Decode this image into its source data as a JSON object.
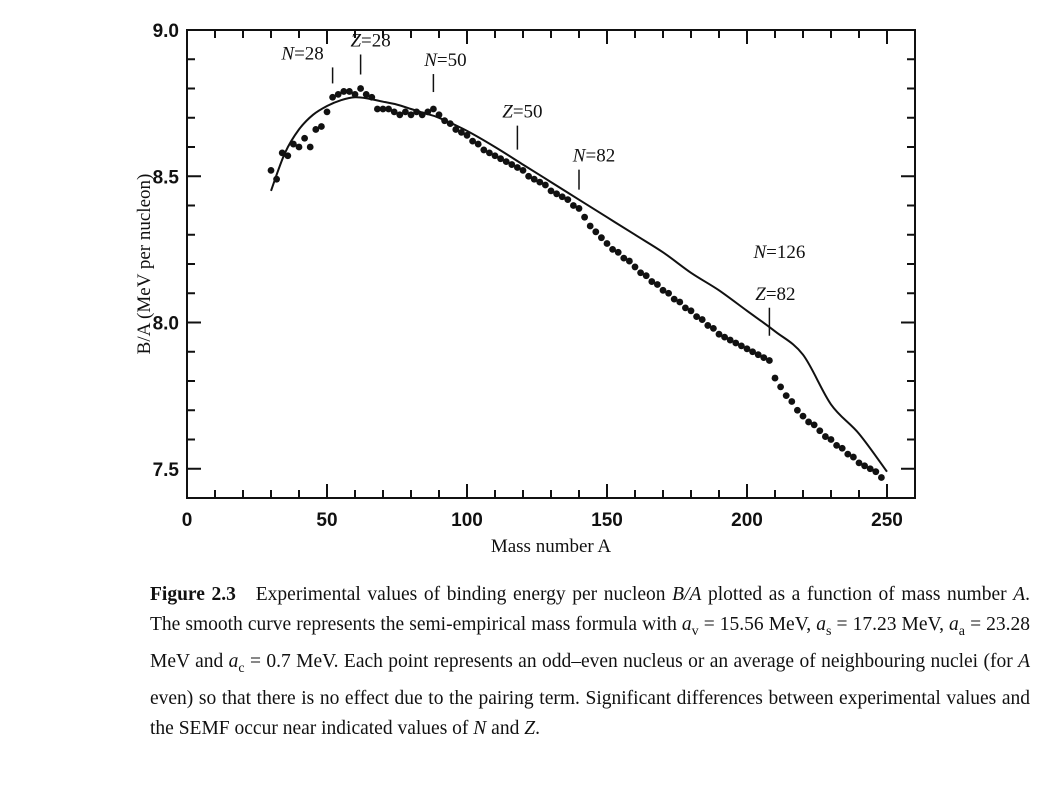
{
  "chart_data": {
    "type": "scatter",
    "xlabel": "Mass number A",
    "ylabel": "B/A (MeV per nucleon)",
    "xlim": [
      0,
      260
    ],
    "ylim": [
      7.4,
      9.0
    ],
    "x_ticks": [
      "0",
      "50",
      "100",
      "150",
      "200",
      "250"
    ],
    "x_tick_values": [
      0,
      50,
      100,
      150,
      200,
      250
    ],
    "y_ticks": [
      "7.5",
      "8.0",
      "8.5",
      "9.0"
    ],
    "y_tick_values": [
      7.5,
      8.0,
      8.5,
      9.0
    ],
    "series": [
      {
        "name": "Experimental values",
        "kind": "points",
        "x": [
          30,
          32,
          34,
          36,
          38,
          40,
          42,
          44,
          46,
          48,
          50,
          52,
          54,
          56,
          58,
          60,
          62,
          64,
          66,
          68,
          70,
          72,
          74,
          76,
          78,
          80,
          82,
          84,
          86,
          88,
          90,
          92,
          94,
          96,
          98,
          100,
          102,
          104,
          106,
          108,
          110,
          112,
          114,
          116,
          118,
          120,
          122,
          124,
          126,
          128,
          130,
          132,
          134,
          136,
          138,
          140,
          142,
          144,
          146,
          148,
          150,
          152,
          154,
          156,
          158,
          160,
          162,
          164,
          166,
          168,
          170,
          172,
          174,
          176,
          178,
          180,
          182,
          184,
          186,
          188,
          190,
          192,
          194,
          196,
          198,
          200,
          202,
          204,
          206,
          208,
          210,
          212,
          214,
          216,
          218,
          220,
          222,
          224,
          226,
          228,
          230,
          232,
          234,
          236,
          238,
          240,
          242,
          244,
          246,
          248
        ],
        "y": [
          8.52,
          8.49,
          8.58,
          8.57,
          8.61,
          8.6,
          8.63,
          8.6,
          8.66,
          8.67,
          8.72,
          8.77,
          8.78,
          8.79,
          8.79,
          8.78,
          8.8,
          8.78,
          8.77,
          8.73,
          8.73,
          8.73,
          8.72,
          8.71,
          8.72,
          8.71,
          8.72,
          8.71,
          8.72,
          8.73,
          8.71,
          8.69,
          8.68,
          8.66,
          8.65,
          8.64,
          8.62,
          8.61,
          8.59,
          8.58,
          8.57,
          8.56,
          8.55,
          8.54,
          8.53,
          8.52,
          8.5,
          8.49,
          8.48,
          8.47,
          8.45,
          8.44,
          8.43,
          8.42,
          8.4,
          8.39,
          8.36,
          8.33,
          8.31,
          8.29,
          8.27,
          8.25,
          8.24,
          8.22,
          8.21,
          8.19,
          8.17,
          8.16,
          8.14,
          8.13,
          8.11,
          8.1,
          8.08,
          8.07,
          8.05,
          8.04,
          8.02,
          8.01,
          7.99,
          7.98,
          7.96,
          7.95,
          7.94,
          7.93,
          7.92,
          7.91,
          7.9,
          7.89,
          7.88,
          7.87,
          7.81,
          7.78,
          7.75,
          7.73,
          7.7,
          7.68,
          7.66,
          7.65,
          7.63,
          7.61,
          7.6,
          7.58,
          7.57,
          7.55,
          7.54,
          7.52,
          7.51,
          7.5,
          7.49,
          7.47
        ]
      },
      {
        "name": "Semi-empirical mass formula",
        "kind": "curve",
        "x": [
          30,
          35,
          40,
          45,
          50,
          55,
          60,
          65,
          70,
          75,
          80,
          85,
          90,
          100,
          110,
          120,
          130,
          140,
          150,
          160,
          170,
          180,
          190,
          200,
          210,
          220,
          230,
          240,
          250
        ],
        "y": [
          8.45,
          8.58,
          8.66,
          8.71,
          8.74,
          8.76,
          8.77,
          8.765,
          8.755,
          8.745,
          8.73,
          8.715,
          8.7,
          8.655,
          8.6,
          8.54,
          8.48,
          8.42,
          8.36,
          8.3,
          8.24,
          8.17,
          8.11,
          8.04,
          7.97,
          7.89,
          7.72,
          7.62,
          7.49
        ]
      }
    ],
    "annotations": [
      {
        "label": "N =28",
        "x": 52,
        "y": 8.79
      },
      {
        "label": "Z =28",
        "x": 62,
        "y": 8.8
      },
      {
        "label": "N =50",
        "x": 88,
        "y": 8.74
      },
      {
        "label": "Z =50",
        "x": 118,
        "y": 8.55
      },
      {
        "label": "N =82",
        "x": 140,
        "y": 8.42
      },
      {
        "label": "N =126",
        "x": 208,
        "y": 7.9
      },
      {
        "label": "Z =82",
        "x": 208,
        "y": 7.9
      }
    ]
  },
  "caption": {
    "figure_label": "Figure 2.3",
    "text": "Experimental values of binding energy per nucleon B/A plotted as a function of mass number A. The smooth curve represents the semi-empirical mass formula with av = 15.56 MeV, as = 17.23 MeV, aa = 23.28 MeV and ac = 0.7 MeV. Each point represents an odd–even nucleus or an average of neighbouring nuclei (for A even) so that there is no effect due to the pairing term. Significant differences between experimental values and the SEMF occur near indicated values of N and Z.",
    "p1": "Experimental values of binding energy per nucleon ",
    "sym_BA": "B/A",
    "p2": " plotted as a function of mass number ",
    "sym_A1": "A",
    "p3": ". The smooth curve represents the semi-empirical mass formula with ",
    "av_sym": "a",
    "av_sub": "v",
    "av_val": " = 15.56 MeV, ",
    "as_sym": "a",
    "as_sub": "s",
    "as_val": " = 17.23 MeV, ",
    "aa_sym": "a",
    "aa_sub": "a",
    "aa_val": " = 23.28 MeV and ",
    "ac_sym": "a",
    "ac_sub": "c",
    "ac_val": " = 0.7 MeV. Each point represents an odd–even nucleus or an average of neighbouring nuclei (for ",
    "sym_A2": "A",
    "p4": " even) so that there is no effect due to the pairing term. Significant differences between experimental values and the SEMF occur near indicated values of ",
    "sym_N": "N",
    "p5": " and ",
    "sym_Z": "Z",
    "p6": "."
  }
}
